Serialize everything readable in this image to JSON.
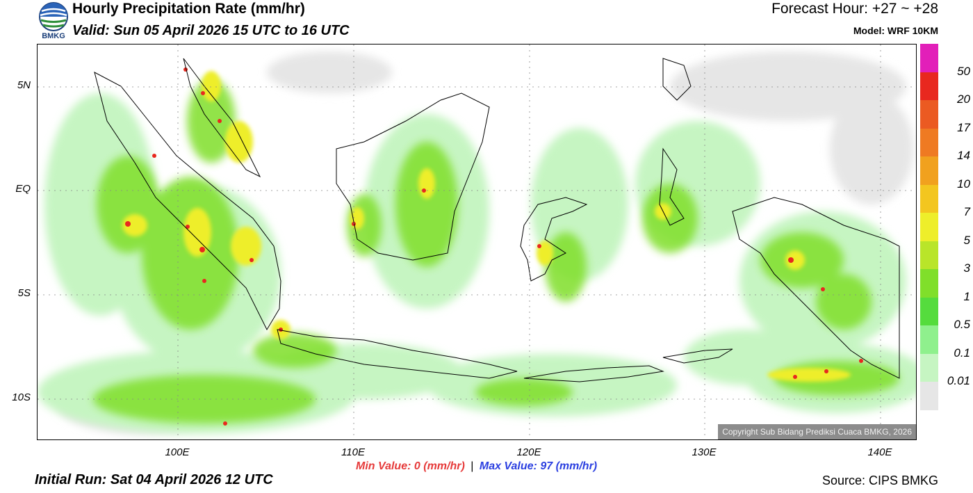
{
  "header": {
    "title": "Hourly Precipitation Rate (mm/hr)",
    "valid": "Valid: Sun 05 April 2026 15 UTC to 16 UTC",
    "forecast_hour": "Forecast Hour: +27 ~ +28",
    "model": "Model: WRF 10KM",
    "logo_text": "BMKG"
  },
  "axes": {
    "lat_ticks": [
      "5N",
      "EQ",
      "5S",
      "10S"
    ],
    "lon_ticks": [
      "100E",
      "110E",
      "120E",
      "130E",
      "140E"
    ]
  },
  "map": {
    "copyright": "Copyright Sub Bidang Prediksi Cuaca BMKG, 2026",
    "accent_colors": {
      "land_border": "#000000",
      "grid": "#888888"
    }
  },
  "legend": {
    "labels": [
      "50",
      "20",
      "17",
      "14",
      "10",
      "7",
      "5",
      "3",
      "1",
      "0.5",
      "0.1",
      "0.01"
    ],
    "colors": [
      "#e21fb9",
      "#e8281f",
      "#eb5a22",
      "#ef7a22",
      "#f1a11e",
      "#f3c61f",
      "#eeee2a",
      "#b9e529",
      "#80df2a",
      "#55dc3d",
      "#8ff08d",
      "#c6f5c2",
      "#e6e6e6"
    ]
  },
  "stats": {
    "min_label": "Min Value:",
    "min_value": "0",
    "max_label": "Max Value:",
    "max_value": "97",
    "unit": "(mm/hr)",
    "separator": "|"
  },
  "footer": {
    "initial_run": "Initial Run: Sat 04 April 2026 12 UTC",
    "source": "Source: CIPS BMKG"
  }
}
